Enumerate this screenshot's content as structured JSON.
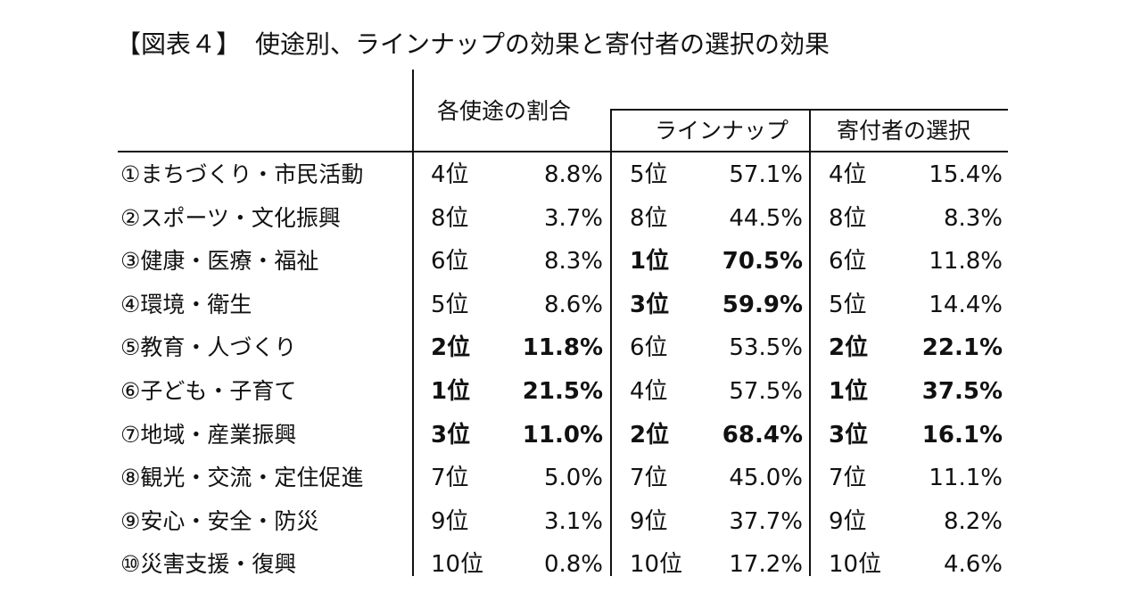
{
  "title": "【図表４】",
  "subtitle": "使途別、ラインナップの効果と寄付者の選択の効果",
  "headers": {
    "group": "各使途の割合",
    "lineup": "ラインナップ",
    "donor": "寄付者の選択"
  },
  "rows": [
    {
      "label": "①まちづくり・市民活動",
      "r1": "4位",
      "p1": "8.8%",
      "r2": "5位",
      "p2": "57.1%",
      "r3": "4位",
      "p3": "15.4%",
      "bold": [
        false,
        false,
        false
      ]
    },
    {
      "label": "②スポーツ・文化振興",
      "r1": "8位",
      "p1": "3.7%",
      "r2": "8位",
      "p2": "44.5%",
      "r3": "8位",
      "p3": "8.3%",
      "bold": [
        false,
        false,
        false
      ]
    },
    {
      "label": "③健康・医療・福祉",
      "r1": "6位",
      "p1": "8.3%",
      "r2": "1位",
      "p2": "70.5%",
      "r3": "6位",
      "p3": "11.8%",
      "bold": [
        false,
        true,
        false
      ]
    },
    {
      "label": "④環境・衛生",
      "r1": "5位",
      "p1": "8.6%",
      "r2": "3位",
      "p2": "59.9%",
      "r3": "5位",
      "p3": "14.4%",
      "bold": [
        false,
        true,
        false
      ]
    },
    {
      "label": "⑤教育・人づくり",
      "r1": "2位",
      "p1": "11.8%",
      "r2": "6位",
      "p2": "53.5%",
      "r3": "2位",
      "p3": "22.1%",
      "bold": [
        true,
        false,
        true
      ]
    },
    {
      "label": "⑥子ども・子育て",
      "r1": "1位",
      "p1": "21.5%",
      "r2": "4位",
      "p2": "57.5%",
      "r3": "1位",
      "p3": "37.5%",
      "bold": [
        true,
        false,
        true
      ]
    },
    {
      "label": "⑦地域・産業振興",
      "r1": "3位",
      "p1": "11.0%",
      "r2": "2位",
      "p2": "68.4%",
      "r3": "3位",
      "p3": "16.1%",
      "bold": [
        true,
        true,
        true
      ]
    },
    {
      "label": "⑧観光・交流・定住促進",
      "r1": "7位",
      "p1": "5.0%",
      "r2": "7位",
      "p2": "45.0%",
      "r3": "7位",
      "p3": "11.1%",
      "bold": [
        false,
        false,
        false
      ]
    },
    {
      "label": "⑨安心・安全・防災",
      "r1": "9位",
      "p1": "3.1%",
      "r2": "9位",
      "p2": "37.7%",
      "r3": "9位",
      "p3": "8.2%",
      "bold": [
        false,
        false,
        false
      ]
    },
    {
      "label": "⑩災害支援・復興",
      "r1": "10位",
      "p1": "0.8%",
      "r2": "10位",
      "p2": "17.2%",
      "r3": "10位",
      "p3": "4.6%",
      "bold": [
        false,
        false,
        false
      ]
    }
  ]
}
